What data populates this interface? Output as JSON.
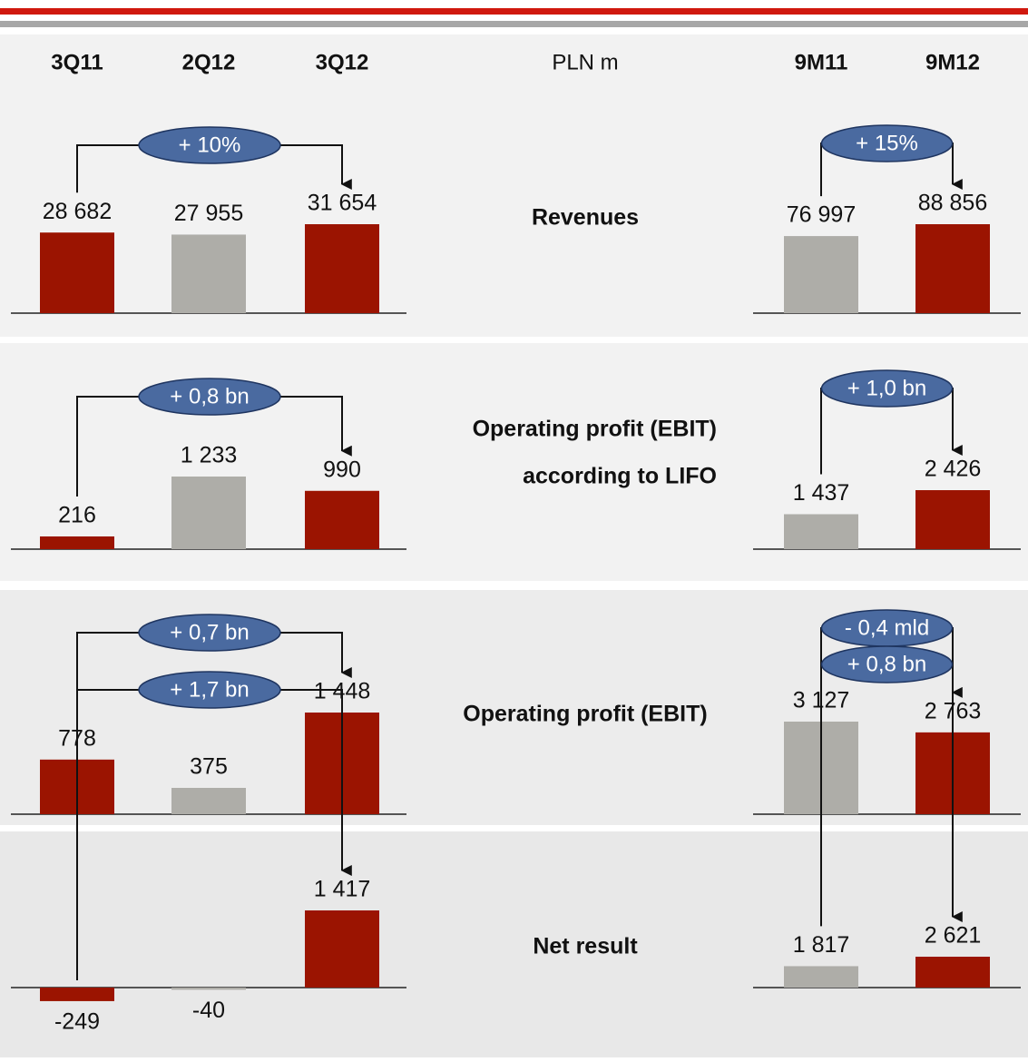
{
  "header": {
    "quarters": [
      "3Q11",
      "2Q12",
      "3Q12"
    ],
    "unit": "PLN m",
    "periods": [
      "9M11",
      "9M12"
    ]
  },
  "chart_data": [
    {
      "type": "bar",
      "title_lines": [
        "Revenues"
      ],
      "quarterly": {
        "values": [
          28682,
          27955,
          31654
        ],
        "value_labels": [
          "28 682",
          "27 955",
          "31 654"
        ],
        "colors": [
          "#9b1401",
          "#aeada8",
          "#9b1401"
        ],
        "annotation": "+ 10%"
      },
      "nine_months": {
        "values": [
          76997,
          88856
        ],
        "value_labels": [
          "76 997",
          "88 856"
        ],
        "colors": [
          "#aeada8",
          "#9b1401"
        ],
        "annotation": "+ 15%"
      }
    },
    {
      "type": "bar",
      "title_lines": [
        "Operating profit (EBIT)",
        "according to LIFO"
      ],
      "quarterly": {
        "values": [
          216,
          1233,
          990
        ],
        "value_labels": [
          "216",
          "1 233",
          "990"
        ],
        "colors": [
          "#9b1401",
          "#aeada8",
          "#9b1401"
        ],
        "annotation": "+ 0,8 bn"
      },
      "nine_months": {
        "values": [
          1437,
          2426
        ],
        "value_labels": [
          "1 437",
          "2 426"
        ],
        "colors": [
          "#aeada8",
          "#9b1401"
        ],
        "annotation": "+ 1,0 bn"
      }
    },
    {
      "type": "bar",
      "title_lines": [
        "Operating profit (EBIT)"
      ],
      "quarterly": {
        "values": [
          778,
          375,
          1448
        ],
        "value_labels": [
          "778",
          "375",
          "1 448"
        ],
        "colors": [
          "#9b1401",
          "#aeada8",
          "#9b1401"
        ],
        "annotation": "+ 0,7 bn"
      },
      "nine_months": {
        "values": [
          3127,
          2763
        ],
        "value_labels": [
          "3 127",
          "2 763"
        ],
        "colors": [
          "#aeada8",
          "#9b1401"
        ],
        "annotation": "- 0,4 mld"
      }
    },
    {
      "type": "bar",
      "title_lines": [
        "Net result"
      ],
      "quarterly": {
        "values": [
          -249,
          -40,
          1417
        ],
        "value_labels": [
          "-249",
          "-40",
          "1 417"
        ],
        "colors": [
          "#9b1401",
          "#aeada8",
          "#9b1401"
        ],
        "annotation": "+ 1,7 bn"
      },
      "nine_months": {
        "values": [
          1817,
          2621
        ],
        "value_labels": [
          "1 817",
          "2 621"
        ],
        "colors": [
          "#aeada8",
          "#9b1401"
        ],
        "annotation": "+ 0,8 bn"
      }
    }
  ]
}
